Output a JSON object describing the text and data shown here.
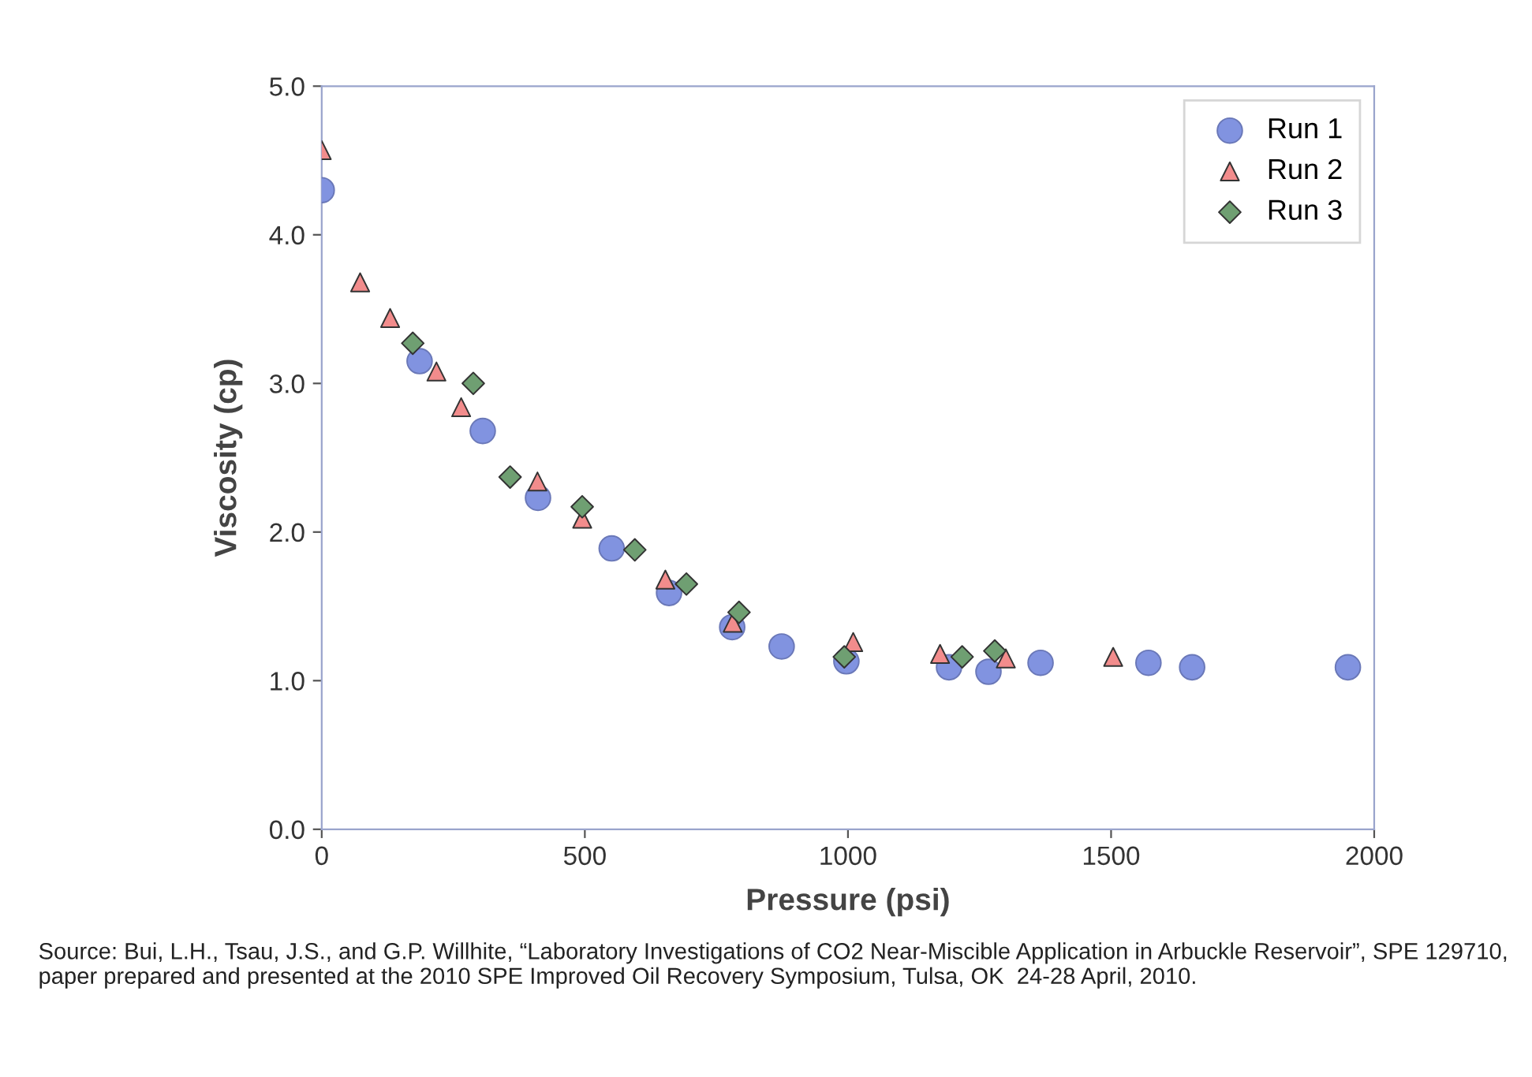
{
  "chart_data": {
    "type": "scatter",
    "xlabel": "Pressure (psi)",
    "ylabel": "Viscosity (cp)",
    "xlim": [
      0,
      2000
    ],
    "ylim": [
      0,
      5
    ],
    "xticks": [
      0,
      500,
      1000,
      1500,
      2000
    ],
    "yticks": [
      {
        "value": 0,
        "label": "0.0"
      },
      {
        "value": 1,
        "label": "1.0"
      },
      {
        "value": 2,
        "label": "2.0"
      },
      {
        "value": 3,
        "label": "3.0"
      },
      {
        "value": 4,
        "label": "4.0"
      },
      {
        "value": 5,
        "label": "5.0"
      }
    ],
    "grid": false,
    "legend": "top right",
    "series": [
      {
        "name": "Run 1",
        "color": "#8193e0",
        "marker": "circle",
        "x": [
          0,
          186,
          306,
          411,
          551,
          660,
          780,
          874,
          997,
          1192,
          1267,
          1366,
          1571,
          1654,
          1950
        ],
        "values": [
          4.3,
          3.15,
          2.68,
          2.23,
          1.89,
          1.59,
          1.36,
          1.23,
          1.13,
          1.09,
          1.06,
          1.12,
          1.12,
          1.09,
          1.09
        ]
      },
      {
        "name": "Run 2",
        "color": "#f28c8c",
        "marker": "triangle",
        "x": [
          0,
          73,
          130,
          218,
          265,
          410,
          495,
          653,
          781,
          1010,
          1175,
          1300,
          1504
        ],
        "values": [
          4.57,
          3.68,
          3.44,
          3.08,
          2.84,
          2.34,
          2.09,
          1.68,
          1.39,
          1.26,
          1.18,
          1.15,
          1.16
        ]
      },
      {
        "name": "Run 3",
        "color": "#6f9f72",
        "marker": "diamond",
        "x": [
          173,
          288,
          358,
          495,
          595,
          693,
          793,
          993,
          1217,
          1279
        ],
        "values": [
          3.27,
          3.0,
          2.37,
          2.17,
          1.88,
          1.65,
          1.46,
          1.16,
          1.16,
          1.2
        ]
      }
    ],
    "annotations": [
      "Source: Bui, L.H., Tsau, J.S., and G.P. Willhite, “Laboratory Investigations of CO2 Near-Miscible Application in Arbuckle Reservoir”, SPE 129710, paper prepared and presented at the 2010 SPE Improved Oil Recovery Symposium, Tulsa, OK  24-28 April, 2010."
    ]
  }
}
